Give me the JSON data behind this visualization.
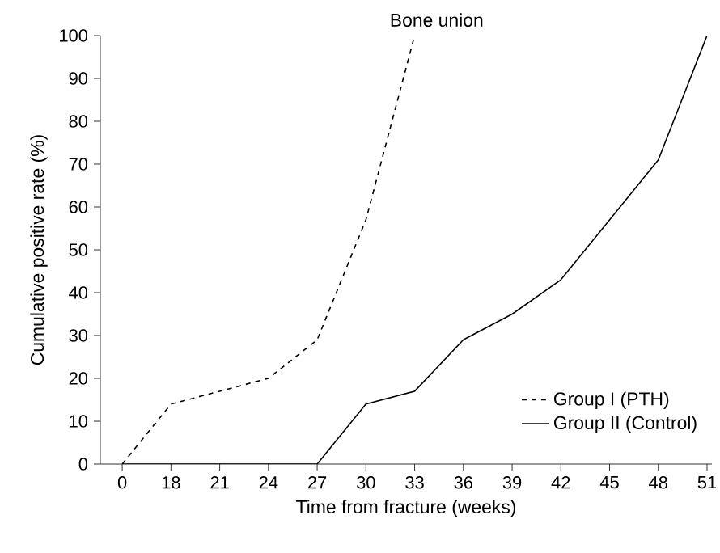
{
  "chart_data": {
    "type": "line",
    "title": "Bone union",
    "xlabel": "Time from fracture (weeks)",
    "ylabel": "Cumulative positive rate (%)",
    "categories": [
      "0",
      "18",
      "21",
      "24",
      "27",
      "30",
      "33",
      "36",
      "39",
      "42",
      "45",
      "48",
      "51"
    ],
    "series": [
      {
        "name": "Group  I (PTH)",
        "color": "#000000",
        "line_style": "dashed",
        "values": [
          0,
          14,
          17,
          20,
          29,
          57,
          100,
          null,
          null,
          null,
          null,
          null,
          null
        ]
      },
      {
        "name": "Group  II (Control)",
        "color": "#000000",
        "line_style": "solid",
        "values": [
          0,
          0,
          0,
          0,
          0,
          14,
          17,
          29,
          35,
          43,
          57,
          71,
          100
        ]
      }
    ],
    "ylim": [
      0,
      100
    ],
    "yticks": [
      0,
      10,
      20,
      30,
      40,
      50,
      60,
      70,
      80,
      90,
      100
    ],
    "legend": "bottom right"
  }
}
